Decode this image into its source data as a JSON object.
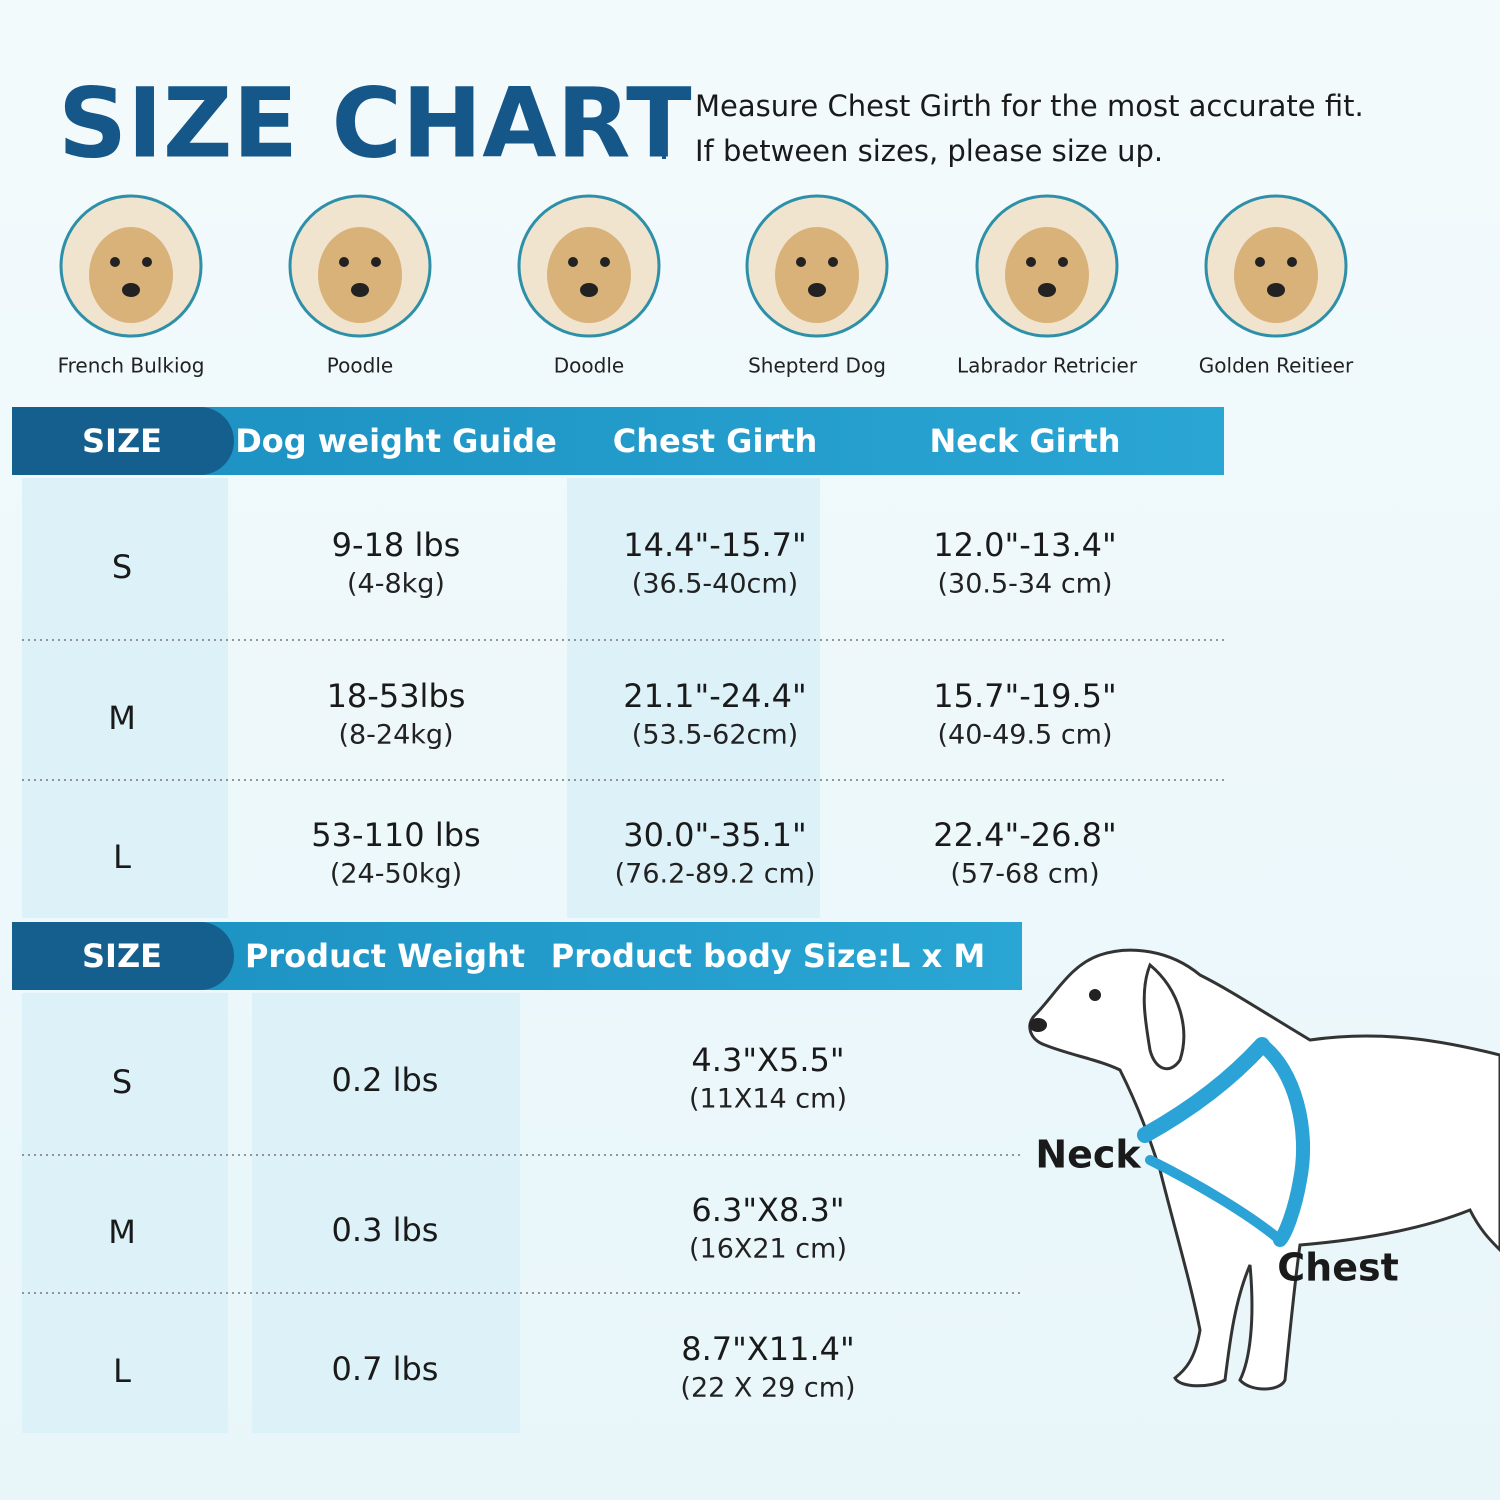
{
  "header": {
    "title": "SIZE CHART",
    "subtitle": [
      "Measure Chest Girth for the most accurate fit.",
      "If between sizes, please size up."
    ]
  },
  "breeds": [
    "French Bulkiog",
    "Poodle",
    "Doodle",
    "Shepterd Dog",
    "Labrador Retricier",
    "Golden Reitieer"
  ],
  "table1": {
    "headers": [
      "SIZE",
      "Dog weight Guide",
      "Chest Girth",
      "Neck Girth"
    ],
    "rows": [
      [
        "S",
        {
          "main": "9-18 lbs",
          "sub": "(4-8kg)"
        },
        {
          "main": "14.4\"-15.7\"",
          "sub": "(36.5-40cm)"
        },
        {
          "main": "12.0\"-13.4\"",
          "sub": "(30.5-34 cm)"
        }
      ],
      [
        "M",
        {
          "main": "18-53lbs",
          "sub": "(8-24kg)"
        },
        {
          "main": "21.1\"-24.4\"",
          "sub": "(53.5-62cm)"
        },
        {
          "main": "15.7\"-19.5\"",
          "sub": "(40-49.5 cm)"
        }
      ],
      [
        "L",
        {
          "main": "53-110 lbs",
          "sub": "(24-50kg)"
        },
        {
          "main": "30.0\"-35.1\"",
          "sub": "(76.2-89.2 cm)"
        },
        {
          "main": "22.4\"-26.8\"",
          "sub": "(57-68 cm)"
        }
      ]
    ]
  },
  "table2": {
    "headers": [
      "SIZE",
      "Product Weight",
      "Product body Size:L x M"
    ],
    "rows": [
      [
        "S",
        "0.2 lbs",
        {
          "main": "4.3\"X5.5\"",
          "sub": "(11X14 cm)"
        }
      ],
      [
        "M",
        "0.3 lbs",
        {
          "main": "6.3\"X8.3\"",
          "sub": "(16X21 cm)"
        }
      ],
      [
        "L",
        "0.7 lbs",
        {
          "main": "8.7\"X11.4\"",
          "sub": "(22 X 29 cm)"
        }
      ]
    ]
  },
  "diagram": {
    "neck": "Neck",
    "chest": "Chest"
  }
}
